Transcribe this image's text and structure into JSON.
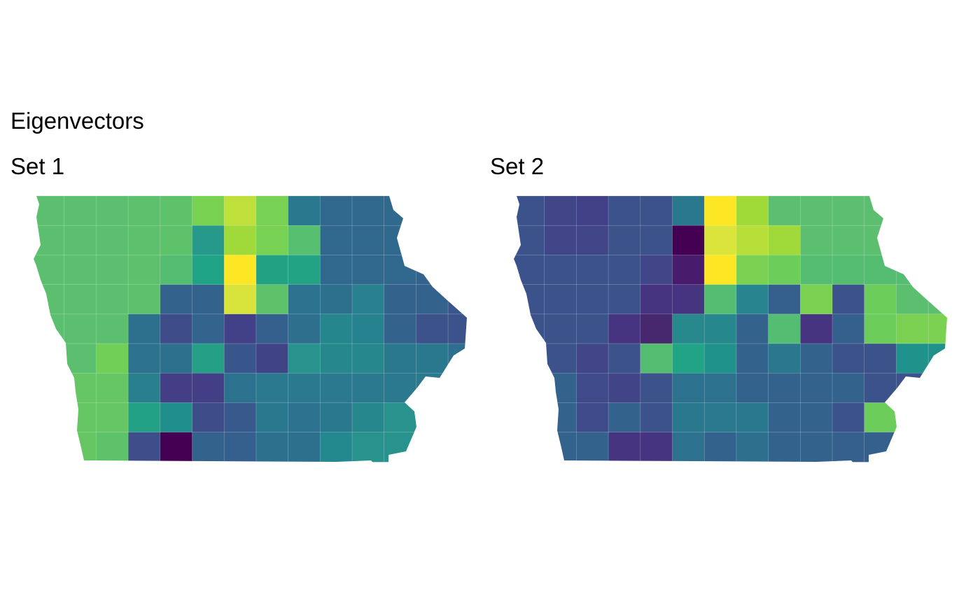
{
  "figure": {
    "title": "Eigenvectors"
  },
  "panels": [
    {
      "label": "Set 1",
      "grid": [
        [
          "#5cbf6f",
          "#5cbf6f",
          "#5cbf6f",
          "#5dc06c",
          "#5ec26a",
          "#79d152",
          "#bfdf3a",
          "#77d153",
          "#2a788e",
          "#31688e",
          "#31688e",
          "#31688e",
          null,
          null
        ],
        [
          "#5cbf6f",
          "#5cbf6f",
          "#5cbf6f",
          "#5dc06c",
          "#5ec26a",
          "#26998a",
          "#9fda3a",
          "#77d153",
          "#57bf70",
          "#31688e",
          "#31688e",
          "#31688e",
          null,
          null
        ],
        [
          "#5cbf6f",
          "#5cbf6f",
          "#5cbf6f",
          "#5dc06c",
          "#55bd71",
          "#20a486",
          "#fde725",
          "#23a183",
          "#22a384",
          "#31688e",
          "#31688e",
          "#31688e",
          "#33638d",
          null
        ],
        [
          "#5cbf6f",
          "#5cbf6f",
          "#5cbf6f",
          "#5dc06c",
          "#33638d",
          "#33638d",
          "#d8e33c",
          "#5ec26a",
          "#2c728e",
          "#2d708e",
          "#29808e",
          "#33638d",
          "#33638d",
          "#3a548c"
        ],
        [
          "#5cbf6f",
          "#5cbf6f",
          "#5cbf6f",
          "#2d708e",
          "#3e4c8a",
          "#32648e",
          "#424086",
          "#35608d",
          "#2e6f8e",
          "#25868e",
          "#26828e",
          "#33638d",
          "#3b528b",
          "#3b528b"
        ],
        [
          "#5cbf6f",
          "#5cbf6f",
          "#70cf57",
          "#2c718e",
          "#2d708e",
          "#25a085",
          "#39568c",
          "#404487",
          "#28938c",
          "#26888d",
          "#26888d",
          "#2a788e",
          "#2a788e",
          "#2e6e8e"
        ],
        [
          "#5cbf6f",
          "#66c663",
          "#66c663",
          "#2a7f8e",
          "#433e85",
          "#433e85",
          "#2c728e",
          "#2a798e",
          "#2a798e",
          "#2a798e",
          "#2a798e",
          "#2a798e",
          "#2a798e",
          null
        ],
        [
          "#66c663",
          "#66c663",
          "#66c663",
          "#23a184",
          "#208f8c",
          "#3e4c8a",
          "#38598c",
          "#2a788e",
          "#2c728e",
          "#2a788e",
          "#26888d",
          "#28938c",
          "#28938c",
          null
        ],
        [
          "#66c663",
          "#66c663",
          "#5ec26a",
          "#3d4e8a",
          "#440154",
          "#33638d",
          "#35608d",
          "#2d708e",
          "#2d708e",
          "#23898e",
          "#28938c",
          "#28938c",
          null,
          null
        ]
      ]
    },
    {
      "label": "Set 2",
      "grid": [
        [
          "#3b528b",
          "#404687",
          "#424086",
          "#3b528b",
          "#3b528b",
          "#2a788e",
          "#fde725",
          "#a0da39",
          "#5cbf6f",
          "#5cbf6f",
          "#5cbf6f",
          "#5cbf6f",
          null,
          null
        ],
        [
          "#3b528b",
          "#404687",
          "#404687",
          "#3b528b",
          "#3b528b",
          "#440154",
          "#dbe43b",
          "#b8de3a",
          "#9fda3a",
          "#5cbf6f",
          "#5cbf6f",
          "#5cbf6f",
          null,
          null
        ],
        [
          "#3b528b",
          "#3b528b",
          "#3b528b",
          "#3b528b",
          "#404687",
          "#481b6d",
          "#fde725",
          "#7ad151",
          "#6ccd5a",
          "#55bd71",
          "#55bd71",
          "#55bd71",
          "#55bd71",
          null
        ],
        [
          "#3b528b",
          "#3b528b",
          "#3b528b",
          "#3b528b",
          "#463480",
          "#463480",
          "#55bd71",
          "#28848e",
          "#35608d",
          "#7ad151",
          "#3b528b",
          "#6ccd5a",
          "#5cbf6f",
          "#5cbf6f"
        ],
        [
          "#3b528b",
          "#3b528b",
          "#3b528b",
          "#463480",
          "#47276e",
          "#28898d",
          "#26888d",
          "#33638d",
          "#55bd71",
          "#463480",
          "#35608d",
          "#6ccd5a",
          "#7ad151",
          "#7ad151"
        ],
        [
          "#3b528b",
          "#3b528b",
          "#404687",
          "#3b528b",
          "#55bd71",
          "#21a386",
          "#20928c",
          "#33638d",
          "#2a778e",
          "#33638d",
          "#3b528b",
          "#3b528b",
          "#20928c",
          "#20928c"
        ],
        [
          "#33638d",
          "#33638d",
          "#3e4a89",
          "#414487",
          "#3b528b",
          "#2c718e",
          "#2c718e",
          "#33638d",
          "#33638d",
          "#33638d",
          "#33638d",
          "#3b528b",
          "#3b528b",
          null
        ],
        [
          "#33638d",
          "#33638d",
          "#3e4a89",
          "#33638d",
          "#3b528b",
          "#2a788e",
          "#2a798e",
          "#2a788e",
          "#33638d",
          "#33638d",
          "#3b528b",
          "#6ccd5a",
          "#6ccd5a",
          null
        ],
        [
          "#33638d",
          "#33638d",
          "#33638d",
          "#463480",
          "#463480",
          "#2c718e",
          "#33638d",
          "#2e6f8e",
          "#33638d",
          "#33638d",
          "#35608d",
          "#35608d",
          null,
          null
        ]
      ]
    }
  ]
}
